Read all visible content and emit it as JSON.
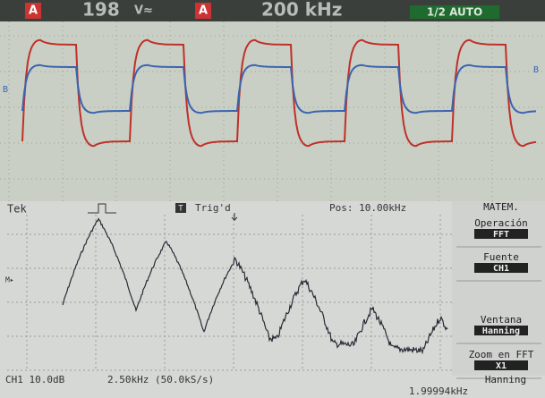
{
  "top_display": {
    "channel_a_label": "A",
    "reading": "198",
    "reading_unit": "V≈",
    "channel_a_label_2": "A",
    "timebase": "200 kHz",
    "mode": "1/2 AUTO",
    "trace_b_marker": "B",
    "trace_b_marker_2": "B"
  },
  "bottom_display": {
    "brand": "Tek",
    "trigger_icon": "T",
    "trigger_status": "Trig'd",
    "position": "Pos: 10.00kHz",
    "marker": "M▸",
    "menu": {
      "title": "MATEM.",
      "items": [
        {
          "label": "Operación",
          "value": "FFT"
        },
        {
          "label": "Fuente",
          "value": "CH1"
        },
        {
          "label": "Ventana",
          "value": "Hanning"
        },
        {
          "label": "Zoom en FFT",
          "value": "X1"
        }
      ]
    },
    "footer": {
      "scale": "CH1 10.0dB",
      "sample": "2.50kHz (50.0kS/s)",
      "window": "Hanning",
      "frequency": "1.99994kHz"
    }
  }
}
